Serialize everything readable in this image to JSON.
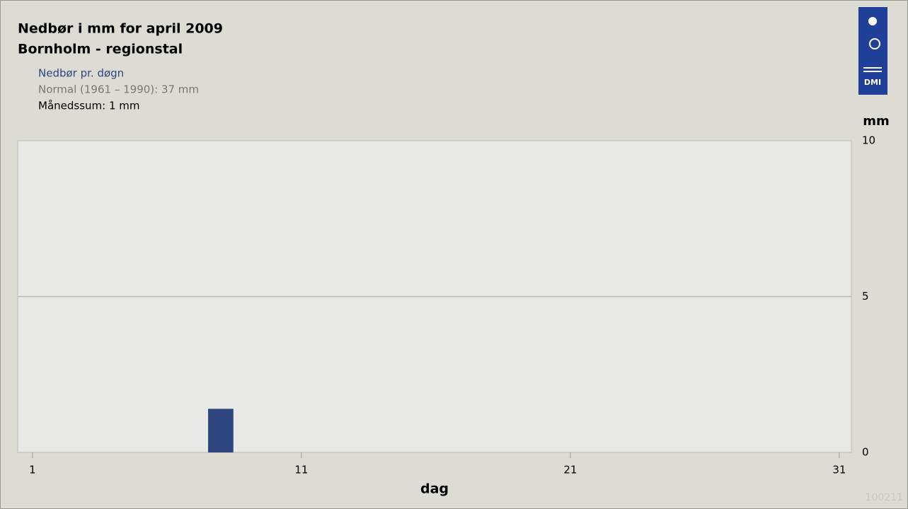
{
  "chart_data": {
    "type": "bar",
    "title": "Nedbør i mm for april 2009",
    "subtitle": "Bornholm - regionstal",
    "series": [
      {
        "name": "Nedbør pr. døgn",
        "color": "#2f4580",
        "values": [
          0,
          0,
          0,
          0,
          0,
          0,
          0,
          1.4,
          0,
          0,
          0,
          0,
          0,
          0,
          0,
          0,
          0,
          0,
          0,
          0,
          0,
          0,
          0,
          0,
          0,
          0,
          0,
          0,
          0,
          0
        ]
      }
    ],
    "x": [
      1,
      2,
      3,
      4,
      5,
      6,
      7,
      8,
      9,
      10,
      11,
      12,
      13,
      14,
      15,
      16,
      17,
      18,
      19,
      20,
      21,
      22,
      23,
      24,
      25,
      26,
      27,
      28,
      29,
      30
    ],
    "annotations": [
      "Normal (1961 – 1990): 37 mm",
      "Månedssum: 1 mm",
      "100211"
    ],
    "logo": "DMI",
    "xlabel": "dag",
    "ylabel": "mm",
    "xlim": [
      0.45,
      31.45
    ],
    "xticks": [
      1,
      11,
      21,
      31
    ],
    "ylim": [
      0,
      10
    ],
    "yticks": [
      0,
      5,
      10
    ],
    "grid": true
  }
}
